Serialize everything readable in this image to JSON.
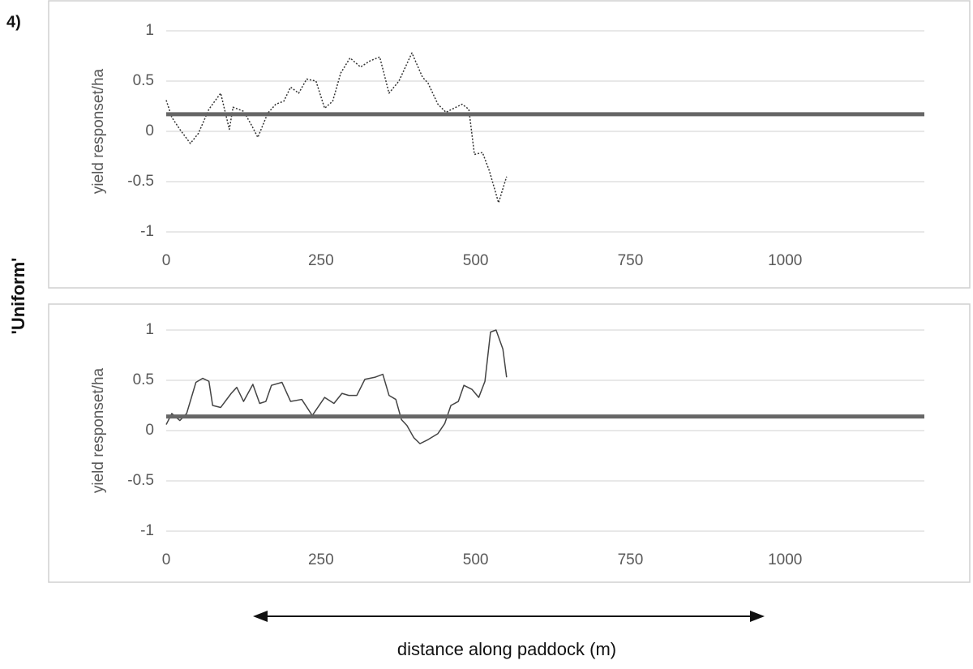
{
  "panel_label": "4)",
  "row_label": "'Uniform'",
  "xlabel": "distance along paddock (m)",
  "chart_data": [
    {
      "type": "line",
      "ylabel": "yield responset/ha",
      "xlim": [
        0,
        1225
      ],
      "xticks": [
        0,
        250,
        500,
        750,
        1000
      ],
      "ylim": [
        -1,
        1
      ],
      "yticks": [
        -1,
        -0.5,
        0,
        0.5,
        1
      ],
      "grid": true,
      "series": [
        {
          "color": "#333333",
          "line_style": "dotted",
          "line_width": 1.5,
          "x": [
            0,
            9,
            22,
            39,
            52,
            69,
            88,
            102,
            108,
            125,
            138,
            148,
            164,
            177,
            190,
            201,
            214,
            227,
            242,
            256,
            269,
            282,
            297,
            314,
            329,
            345,
            360,
            376,
            397,
            414,
            423,
            439,
            452,
            465,
            478,
            489,
            498,
            511,
            522,
            537,
            550
          ],
          "values": [
            0.31,
            0.14,
            0.02,
            -0.12,
            -0.02,
            0.22,
            0.38,
            0.02,
            0.24,
            0.2,
            0.06,
            -0.06,
            0.18,
            0.27,
            0.3,
            0.44,
            0.38,
            0.52,
            0.5,
            0.23,
            0.3,
            0.58,
            0.73,
            0.64,
            0.7,
            0.74,
            0.38,
            0.5,
            0.78,
            0.54,
            0.48,
            0.27,
            0.19,
            0.23,
            0.27,
            0.22,
            -0.23,
            -0.21,
            -0.39,
            -0.71,
            -0.45
          ]
        },
        {
          "color": "#666666",
          "line_style": "solid",
          "line_width": 5,
          "x": [
            0,
            1225
          ],
          "values": [
            0.17,
            0.17
          ]
        }
      ]
    },
    {
      "type": "line",
      "ylabel": "yield responset/ha",
      "xlim": [
        0,
        1225
      ],
      "xticks": [
        0,
        250,
        500,
        750,
        1000
      ],
      "ylim": [
        -1,
        1
      ],
      "yticks": [
        -1,
        -0.5,
        0,
        0.5,
        1
      ],
      "grid": true,
      "series": [
        {
          "color": "#444444",
          "line_style": "solid",
          "line_width": 1.5,
          "x": [
            0,
            9,
            22,
            33,
            48,
            59,
            69,
            75,
            88,
            105,
            114,
            125,
            140,
            151,
            161,
            170,
            187,
            201,
            219,
            236,
            256,
            271,
            284,
            295,
            308,
            321,
            337,
            350,
            360,
            371,
            380,
            389,
            400,
            410,
            423,
            439,
            450,
            460,
            472,
            481,
            494,
            505,
            515,
            524,
            533,
            544,
            550
          ],
          "values": [
            0.06,
            0.17,
            0.1,
            0.17,
            0.48,
            0.52,
            0.49,
            0.25,
            0.23,
            0.37,
            0.43,
            0.29,
            0.46,
            0.27,
            0.29,
            0.45,
            0.48,
            0.29,
            0.31,
            0.15,
            0.33,
            0.27,
            0.37,
            0.35,
            0.35,
            0.51,
            0.53,
            0.56,
            0.35,
            0.31,
            0.11,
            0.05,
            -0.07,
            -0.13,
            -0.09,
            -0.03,
            0.07,
            0.25,
            0.29,
            0.45,
            0.41,
            0.33,
            0.49,
            0.98,
            1.0,
            0.81,
            0.53
          ]
        },
        {
          "color": "#666666",
          "line_style": "solid",
          "line_width": 5,
          "x": [
            0,
            1225
          ],
          "values": [
            0.14,
            0.14
          ]
        }
      ]
    }
  ]
}
